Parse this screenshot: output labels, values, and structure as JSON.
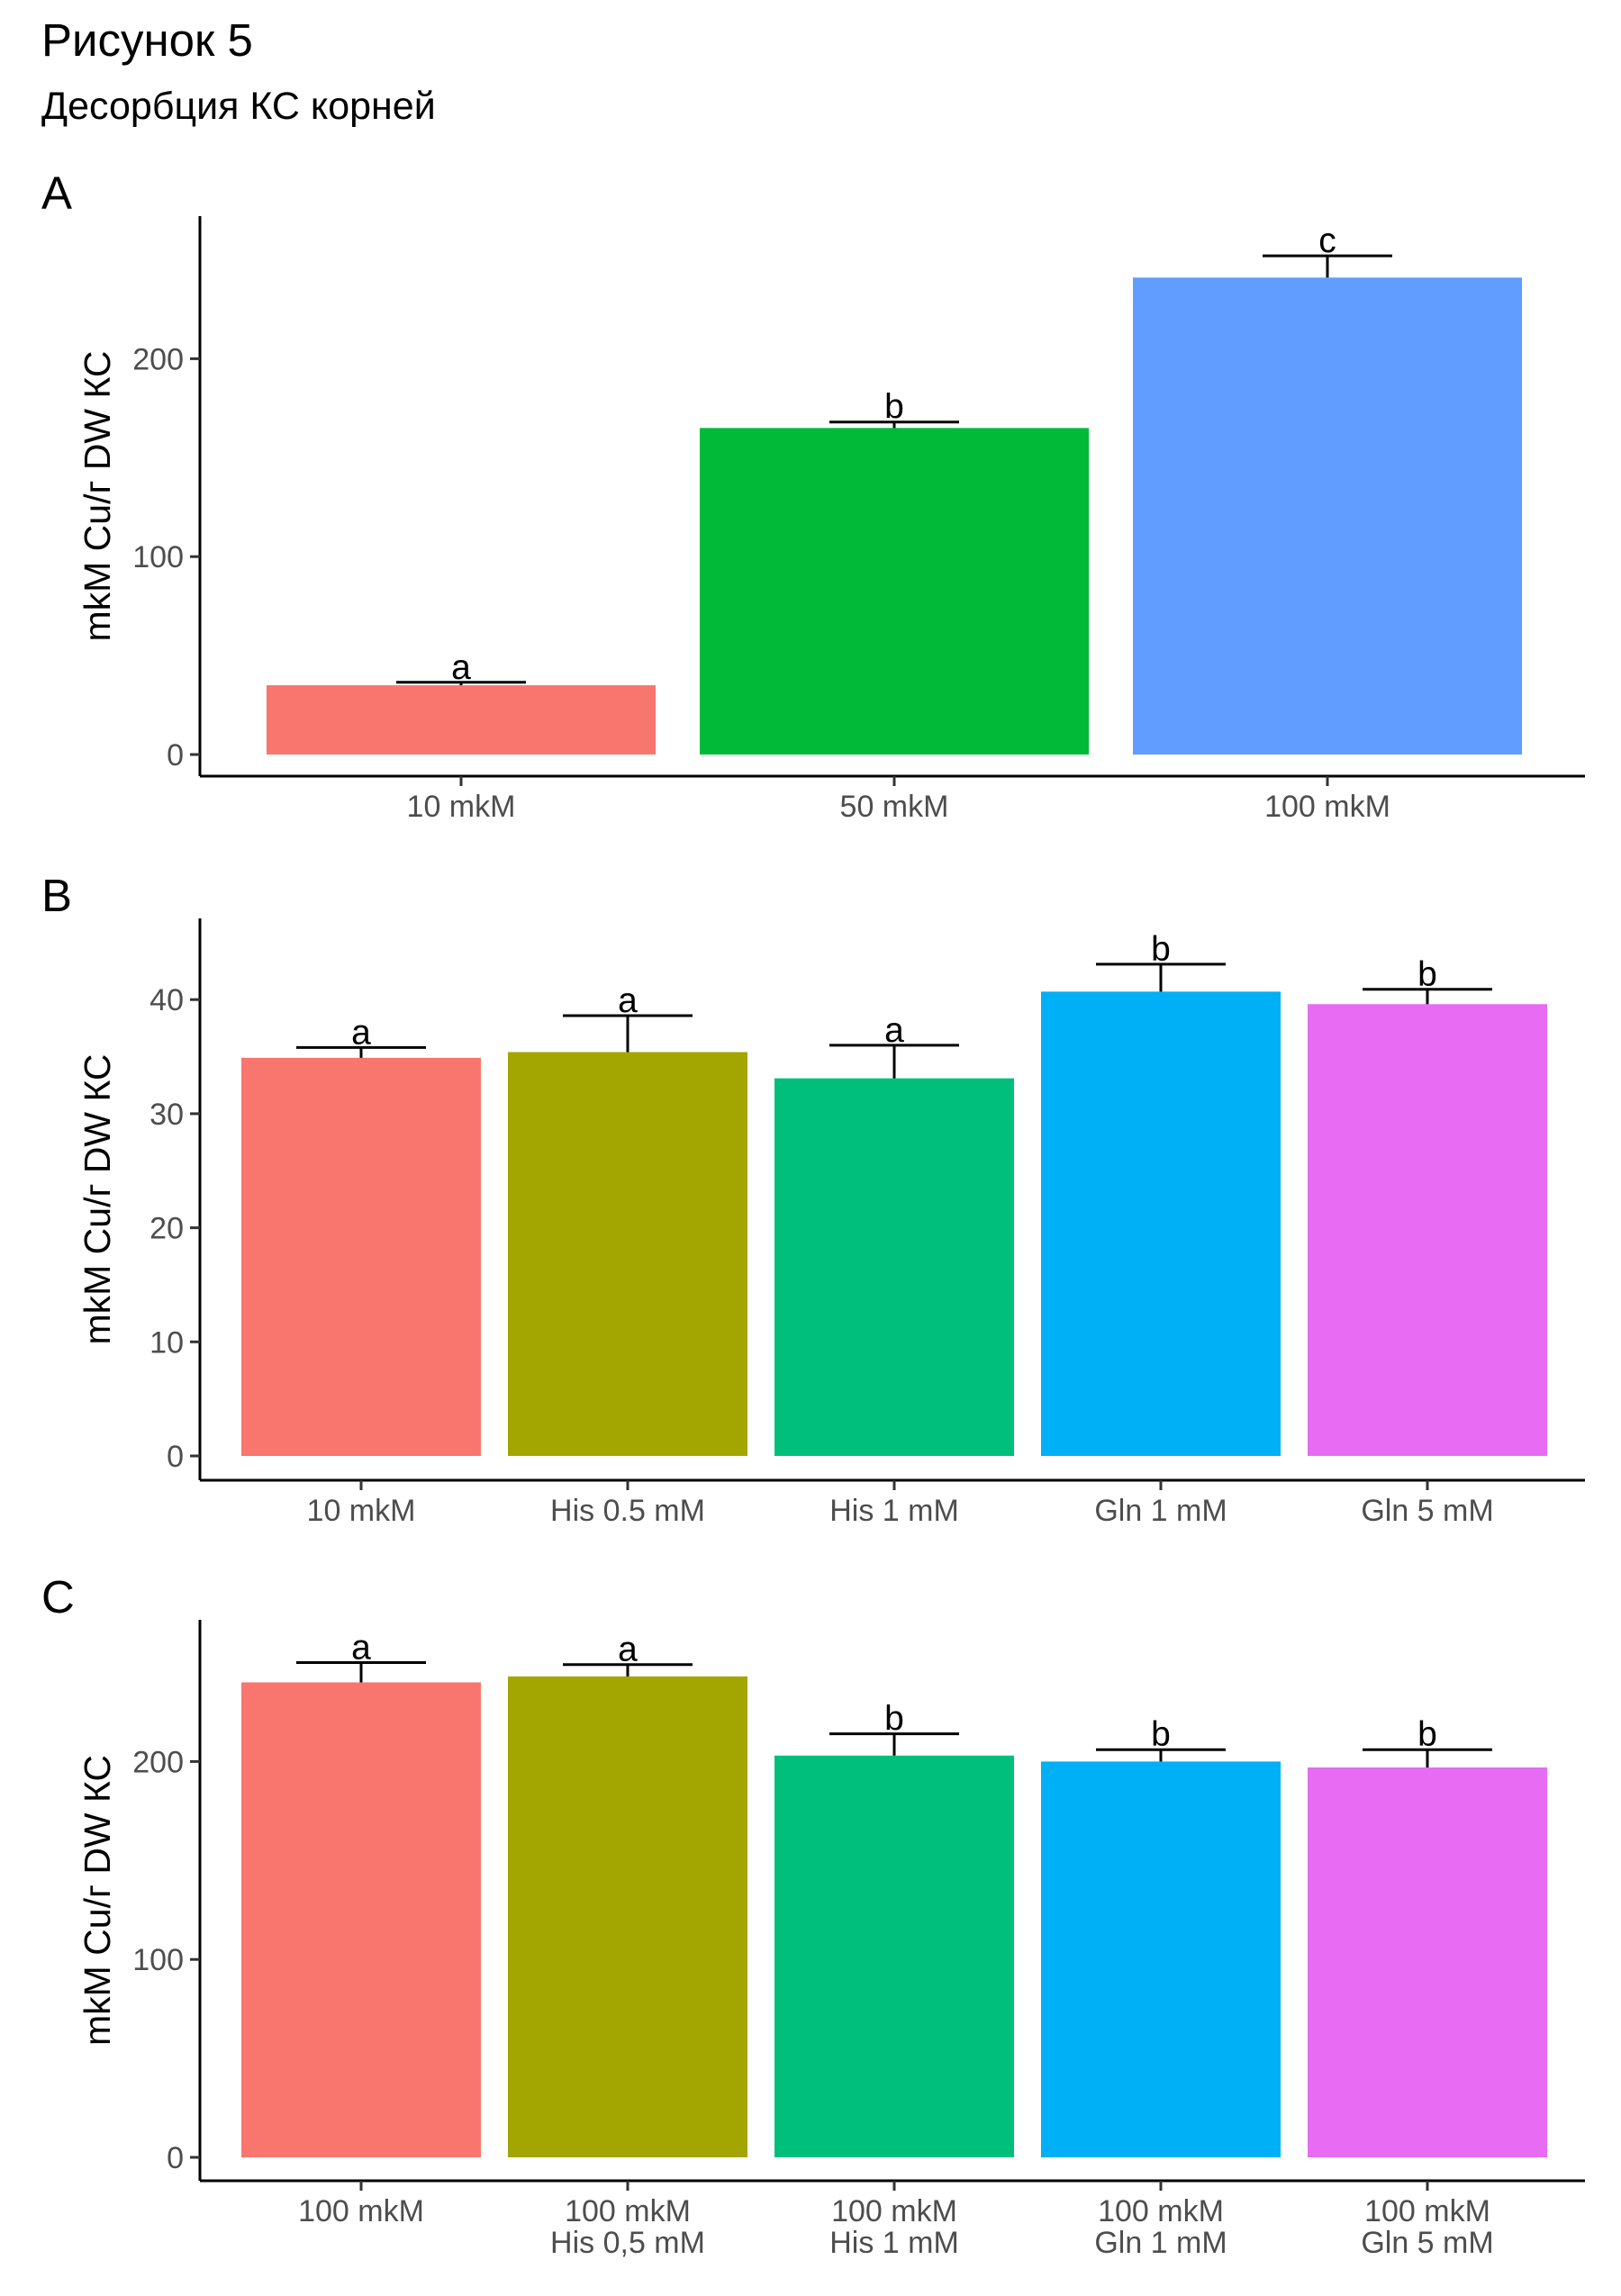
{
  "title": "Рисунок 5",
  "subtitle": "Десорбция КС корней",
  "chart_data": [
    {
      "type": "bar",
      "panel": "A",
      "ylabel": "mkM Cu/г DW КС",
      "xlabel": "",
      "ylim": [
        0,
        262
      ],
      "yticks": [
        0,
        100,
        200
      ],
      "categories": [
        [
          "10 mkM"
        ],
        [
          "50 mkM"
        ],
        [
          "100 mkM"
        ]
      ],
      "values": [
        35,
        165,
        241
      ],
      "errors": [
        1.5,
        3,
        11
      ],
      "labels": [
        "a",
        "b",
        "c"
      ],
      "colors": [
        "#F8766D",
        "#00BA38",
        "#619CFF"
      ],
      "grid": false,
      "legend": "none"
    },
    {
      "type": "bar",
      "panel": "B",
      "ylabel": "mkM Cu/г DW КС",
      "xlabel": "",
      "ylim": [
        0,
        43
      ],
      "yticks": [
        0,
        10,
        20,
        30,
        40
      ],
      "categories": [
        [
          "10 mkM"
        ],
        [
          "His 0.5 mM"
        ],
        [
          "His 1 mM"
        ],
        [
          "Gln 1 mM"
        ],
        [
          "Gln 5 mM"
        ]
      ],
      "values": [
        34.9,
        35.4,
        33.1,
        40.7,
        39.6
      ],
      "errors": [
        0.9,
        3.2,
        2.9,
        2.4,
        1.3
      ],
      "labels": [
        "a",
        "a",
        "a",
        "b",
        "b"
      ],
      "colors": [
        "#F8766D",
        "#A3A500",
        "#00BF7D",
        "#00B0F6",
        "#E76BF3"
      ],
      "grid": false,
      "legend": "none"
    },
    {
      "type": "bar",
      "panel": "C",
      "ylabel": "mkM Cu/г DW КС",
      "xlabel": "",
      "ylim": [
        0,
        254
      ],
      "yticks": [
        0,
        100,
        200
      ],
      "categories": [
        [
          "100 mkM"
        ],
        [
          "100 mkM",
          "His 0,5 mM"
        ],
        [
          "100 mkM",
          "His 1 mM"
        ],
        [
          "100 mkM",
          "Gln 1 mM"
        ],
        [
          "100 mkM",
          "Gln 5 mM"
        ]
      ],
      "values": [
        240,
        243,
        203,
        200,
        197
      ],
      "errors": [
        10,
        6,
        11,
        6,
        9
      ],
      "labels": [
        "a",
        "a",
        "b",
        "b",
        "b"
      ],
      "colors": [
        "#F8766D",
        "#A3A500",
        "#00BF7D",
        "#00B0F6",
        "#E76BF3"
      ],
      "grid": false,
      "legend": "none"
    }
  ]
}
